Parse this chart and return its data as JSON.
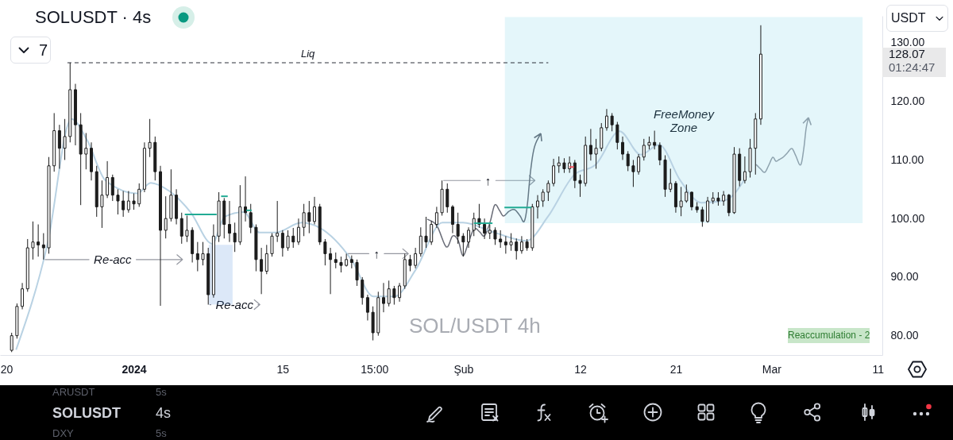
{
  "chart_data": {
    "type": "candlestick",
    "title": "SOLUSDT · 4s",
    "color": "#1c1c1c",
    "x": [
      "2023-12-20T12:00",
      "2023-12-21T00:00",
      "2023-12-21T12:00",
      "2023-12-22T00:00",
      "2023-12-22T12:00",
      "2023-12-23T00:00",
      "2023-12-23T12:00",
      "2023-12-24T00:00",
      "2023-12-24T12:00",
      "2023-12-25T00:00",
      "2023-12-25T12:00",
      "2023-12-26T00:00",
      "2023-12-26T12:00",
      "2023-12-27T00:00",
      "2023-12-27T12:00",
      "2023-12-28T00:00",
      "2023-12-28T12:00",
      "2023-12-29T00:00",
      "2023-12-29T12:00",
      "2023-12-30T00:00",
      "2023-12-30T12:00",
      "2023-12-31T00:00",
      "2023-12-31T12:00",
      "2024-01-01T00:00",
      "2024-01-01T12:00",
      "2024-01-02T00:00",
      "2024-01-02T12:00",
      "2024-01-03T00:00",
      "2024-01-03T12:00",
      "2024-01-04T00:00",
      "2024-01-04T12:00",
      "2024-01-05T00:00",
      "2024-01-05T12:00",
      "2024-01-06T00:00",
      "2024-01-06T12:00",
      "2024-01-07T00:00",
      "2024-01-07T12:00",
      "2024-01-08T00:00",
      "2024-01-08T12:00",
      "2024-01-09T00:00",
      "2024-01-09T12:00",
      "2024-01-10T00:00",
      "2024-01-10T12:00",
      "2024-01-11T00:00",
      "2024-01-11T12:00",
      "2024-01-12T00:00",
      "2024-01-12T12:00",
      "2024-01-13T00:00",
      "2024-01-13T12:00",
      "2024-01-14T00:00",
      "2024-01-14T12:00",
      "2024-01-15T00:00",
      "2024-01-15T12:00",
      "2024-01-16T00:00",
      "2024-01-16T12:00",
      "2024-01-17T00:00",
      "2024-01-17T12:00",
      "2024-01-18T00:00",
      "2024-01-18T12:00",
      "2024-01-19T00:00",
      "2024-01-19T12:00",
      "2024-01-20T00:00",
      "2024-01-20T12:00",
      "2024-01-21T00:00",
      "2024-01-21T12:00",
      "2024-01-22T00:00",
      "2024-01-22T12:00",
      "2024-01-23T00:00",
      "2024-01-23T12:00",
      "2024-01-24T00:00",
      "2024-01-24T12:00",
      "2024-01-25T00:00",
      "2024-01-25T12:00",
      "2024-01-26T00:00",
      "2024-01-26T12:00",
      "2024-01-27T00:00",
      "2024-01-27T12:00",
      "2024-01-28T00:00",
      "2024-01-28T12:00",
      "2024-01-29T00:00",
      "2024-01-29T12:00",
      "2024-01-30T00:00",
      "2024-01-30T12:00",
      "2024-01-31T00:00",
      "2024-01-31T12:00",
      "2024-02-01T00:00",
      "2024-02-01T12:00",
      "2024-02-02T00:00",
      "2024-02-02T12:00",
      "2024-02-03T00:00",
      "2024-02-03T12:00",
      "2024-02-04T00:00",
      "2024-02-04T12:00",
      "2024-02-05T00:00",
      "2024-02-05T12:00",
      "2024-02-06T00:00",
      "2024-02-06T12:00",
      "2024-02-07T00:00",
      "2024-02-07T12:00",
      "2024-02-08T00:00",
      "2024-02-08T12:00",
      "2024-02-09T00:00",
      "2024-02-09T12:00",
      "2024-02-10T00:00",
      "2024-02-10T12:00",
      "2024-02-11T00:00",
      "2024-02-11T12:00",
      "2024-02-12T00:00",
      "2024-02-12T12:00",
      "2024-02-13T00:00",
      "2024-02-13T12:00",
      "2024-02-14T00:00",
      "2024-02-14T12:00",
      "2024-02-15T00:00",
      "2024-02-15T12:00",
      "2024-02-16T00:00",
      "2024-02-16T12:00",
      "2024-02-17T00:00",
      "2024-02-17T12:00",
      "2024-02-18T00:00",
      "2024-02-18T12:00",
      "2024-02-19T00:00",
      "2024-02-19T12:00",
      "2024-02-20T00:00",
      "2024-02-20T12:00",
      "2024-02-21T00:00",
      "2024-02-21T12:00",
      "2024-02-22T00:00",
      "2024-02-22T12:00",
      "2024-02-23T00:00",
      "2024-02-23T12:00",
      "2024-02-24T00:00",
      "2024-02-24T12:00",
      "2024-02-25T00:00",
      "2024-02-25T12:00",
      "2024-02-26T00:00",
      "2024-02-26T12:00",
      "2024-02-27T00:00",
      "2024-02-27T12:00",
      "2024-02-28T00:00",
      "2024-02-28T12:00",
      "2024-02-29T00:00"
    ],
    "ohlc": [
      [
        77.5,
        80.5,
        77.2,
        80
      ],
      [
        80,
        85.5,
        79.5,
        85
      ],
      [
        85,
        89,
        84.5,
        88
      ],
      [
        88,
        96.5,
        87.5,
        95
      ],
      [
        95,
        99.5,
        93,
        96
      ],
      [
        96,
        99,
        93.5,
        95.5
      ],
      [
        95.5,
        97.5,
        93,
        95
      ],
      [
        95,
        110.5,
        94,
        109
      ],
      [
        109,
        118,
        108,
        115
      ],
      [
        115,
        116,
        108.5,
        112
      ],
      [
        112,
        117,
        110,
        114
      ],
      [
        114,
        126.6,
        113,
        122
      ],
      [
        122,
        123,
        112.5,
        116
      ],
      [
        116,
        118,
        102.3,
        111
      ],
      [
        111,
        114.6,
        108.4,
        112
      ],
      [
        112,
        113,
        106.5,
        108
      ],
      [
        108,
        109,
        100.3,
        102
      ],
      [
        102,
        106.5,
        98.4,
        104
      ],
      [
        104,
        109.8,
        103.5,
        107
      ],
      [
        107,
        107.5,
        103,
        104
      ],
      [
        104,
        105,
        100.7,
        103
      ],
      [
        103,
        104.7,
        100.3,
        101.5
      ],
      [
        101.5,
        104.7,
        101,
        103
      ],
      [
        103,
        104.3,
        101.5,
        102.5
      ],
      [
        102.5,
        106,
        102,
        105
      ],
      [
        105,
        113,
        104.5,
        112
      ],
      [
        112,
        117,
        110.5,
        113
      ],
      [
        113,
        114,
        106.5,
        108
      ],
      [
        108,
        109,
        85.1,
        98
      ],
      [
        98,
        103.8,
        96.6,
        100
      ],
      [
        100,
        108.4,
        99.5,
        104
      ],
      [
        104,
        105,
        99,
        100
      ],
      [
        100,
        101,
        95.7,
        97
      ],
      [
        97,
        100.5,
        96,
        98
      ],
      [
        98,
        98.5,
        92.5,
        94
      ],
      [
        94,
        96,
        91,
        93
      ],
      [
        93,
        96,
        92,
        94
      ],
      [
        94,
        95,
        85.3,
        87
      ],
      [
        87,
        99,
        86.5,
        97
      ],
      [
        97,
        104.5,
        96,
        103
      ],
      [
        103,
        103.5,
        96.6,
        99
      ],
      [
        99,
        103,
        96,
        97.5
      ],
      [
        97.5,
        99.3,
        94.3,
        96
      ],
      [
        96,
        105.7,
        95.5,
        102
      ],
      [
        102,
        107.2,
        99.5,
        101
      ],
      [
        101,
        102.5,
        97.5,
        98.5
      ],
      [
        98.5,
        99,
        91,
        93
      ],
      [
        93,
        95,
        87.1,
        91
      ],
      [
        91,
        95.5,
        90.5,
        94
      ],
      [
        94,
        97.5,
        93.5,
        97
      ],
      [
        97,
        103,
        96,
        97.5
      ],
      [
        97.5,
        98,
        93.5,
        95
      ],
      [
        95,
        98,
        94.5,
        97
      ],
      [
        97,
        98.4,
        95,
        96
      ],
      [
        96,
        100,
        95.5,
        98.5
      ],
      [
        98.5,
        102.5,
        97,
        101
      ],
      [
        101,
        103,
        97.5,
        99.5
      ],
      [
        99.5,
        103.7,
        99,
        102
      ],
      [
        102,
        102.5,
        95.5,
        96
      ],
      [
        96,
        96.5,
        92,
        94
      ],
      [
        94,
        95,
        87.1,
        93
      ],
      [
        93,
        94.2,
        91.5,
        92.5
      ],
      [
        92.5,
        93.5,
        90.8,
        92
      ],
      [
        92,
        94,
        91.8,
        93
      ],
      [
        93,
        93.7,
        91.5,
        92.5
      ],
      [
        92.5,
        93,
        88.5,
        89.5
      ],
      [
        89.5,
        90,
        85.3,
        86.5
      ],
      [
        86.5,
        87,
        82.6,
        84
      ],
      [
        84,
        85,
        79.2,
        80.5
      ],
      [
        80.5,
        87.5,
        80,
        86.5
      ],
      [
        86.5,
        89,
        84,
        85.5
      ],
      [
        85.5,
        89.4,
        85,
        88
      ],
      [
        88,
        88.5,
        85.3,
        86.5
      ],
      [
        86.5,
        89,
        85.8,
        88.5
      ],
      [
        88.5,
        94,
        88,
        93
      ],
      [
        93,
        93.8,
        91,
        92
      ],
      [
        92,
        95,
        91.5,
        94
      ],
      [
        94,
        98.5,
        93.5,
        97
      ],
      [
        97,
        100.3,
        95,
        96
      ],
      [
        96,
        99.6,
        95.5,
        99
      ],
      [
        99,
        102,
        98.4,
        101
      ],
      [
        101,
        106.5,
        100.5,
        105
      ],
      [
        105,
        106,
        101,
        102
      ],
      [
        102,
        102.3,
        97.5,
        99
      ],
      [
        99,
        101,
        95.7,
        97
      ],
      [
        97,
        97.5,
        93.5,
        96
      ],
      [
        96,
        98.5,
        95,
        98
      ],
      [
        98,
        101,
        97,
        100
      ],
      [
        100,
        102.5,
        98.4,
        99
      ],
      [
        99,
        100,
        96.5,
        97.5
      ],
      [
        97.5,
        99,
        96.5,
        98
      ],
      [
        98,
        98.5,
        95.5,
        96.5
      ],
      [
        96.5,
        98,
        95,
        96
      ],
      [
        96,
        97,
        94,
        95.5
      ],
      [
        95.5,
        97.5,
        94.5,
        96
      ],
      [
        96,
        96.6,
        93,
        94.5
      ],
      [
        94.5,
        97,
        94,
        96
      ],
      [
        96,
        96.5,
        94.5,
        95
      ],
      [
        95,
        102.5,
        94.5,
        102
      ],
      [
        102,
        104,
        100,
        103
      ],
      [
        103,
        105,
        102,
        104.5
      ],
      [
        104.5,
        106.5,
        103,
        106
      ],
      [
        106,
        110.2,
        105.5,
        109
      ],
      [
        109,
        110.6,
        107.8,
        109.5
      ],
      [
        109.5,
        110.3,
        107.8,
        108.5
      ],
      [
        108.5,
        110.6,
        107.8,
        109.5
      ],
      [
        109.5,
        110,
        105.2,
        106.5
      ],
      [
        106.5,
        107.5,
        103.7,
        106
      ],
      [
        106,
        114,
        105.5,
        112.5
      ],
      [
        112.5,
        115.3,
        109.9,
        111
      ],
      [
        111,
        113.6,
        108.5,
        112
      ],
      [
        112,
        116.3,
        111.5,
        115.5
      ],
      [
        115.5,
        118.7,
        115,
        117.5
      ],
      [
        117.5,
        118,
        114.9,
        116
      ],
      [
        116,
        116.5,
        111.8,
        113
      ],
      [
        113,
        114,
        110,
        111
      ],
      [
        111,
        111.5,
        108.1,
        109
      ],
      [
        109,
        110,
        105.4,
        108
      ],
      [
        108,
        111,
        107.5,
        110.5
      ],
      [
        110.5,
        113.6,
        109.9,
        112.5
      ],
      [
        112.5,
        114,
        111.8,
        113
      ],
      [
        113,
        115,
        111.8,
        112.5
      ],
      [
        112.5,
        113,
        109.1,
        110
      ],
      [
        110,
        110.8,
        103.7,
        105
      ],
      [
        105,
        108.5,
        104.5,
        106
      ],
      [
        106,
        106.4,
        101,
        102
      ],
      [
        102,
        105.4,
        100.4,
        103
      ],
      [
        103,
        105.8,
        102.7,
        104.5
      ],
      [
        104.5,
        104.6,
        101.4,
        102
      ],
      [
        102,
        102.8,
        101,
        101.5
      ],
      [
        101.5,
        102,
        98.6,
        99.5
      ],
      [
        99.5,
        103.7,
        99.3,
        103
      ],
      [
        103,
        104.5,
        102.5,
        103.5
      ],
      [
        103.5,
        104.5,
        102.2,
        103
      ],
      [
        103,
        104.7,
        102.2,
        104
      ],
      [
        104,
        104.2,
        100.4,
        101
      ],
      [
        101,
        112.2,
        100.8,
        111
      ],
      [
        111,
        112,
        105.5,
        106.5
      ],
      [
        106.5,
        110.6,
        106,
        108
      ],
      [
        108,
        113.6,
        107,
        112
      ],
      [
        112,
        118,
        107.5,
        117
      ],
      [
        117,
        133,
        116,
        128.07
      ]
    ],
    "series": [
      {
        "type": "line",
        "x": [
          "2024-02-04T22:00",
          "2024-03-09T14:00"
        ],
        "values": [
          null,
          null
        ],
        "lower": [
          99.2,
          99.2
        ],
        "upper": [
          134.4,
          134.4
        ],
        "color": "#e4f6fa"
      },
      {
        "type": "line",
        "x": [
          "2024-01-08T01:00",
          "2024-01-10T07:00"
        ],
        "values": [
          null,
          null
        ],
        "lower": [
          85.3,
          85.3
        ],
        "upper": [
          95.5,
          95.5
        ],
        "color": "#dce8f8"
      },
      {
        "type": "line",
        "x": [
          "2023-12-20T22:00",
          "2023-12-23T21:00",
          "2023-12-26T03:00",
          "2023-12-27T15:00",
          "2023-12-29T08:00",
          "2024-01-01T08:00",
          "2024-01-02T14:00",
          "2024-01-04T08:00",
          "2024-01-06T08:00",
          "2024-01-08T09:00",
          "2024-01-09T13:00",
          "2024-01-11T08:00",
          "2024-01-12T20:00",
          "2024-01-14T08:00",
          "2024-01-16T19:00",
          "2024-01-18T12:00",
          "2024-01-21T12:00",
          "2024-01-23T13:00",
          "2024-01-25T13:00",
          "2024-01-27T12:00",
          "2024-01-30T01:00",
          "2024-01-31T23:00",
          "2024-02-03T23:00",
          "2024-02-06T23:00",
          "2024-02-08T23:00",
          "2024-02-11T11:00",
          "2024-02-13T11:00",
          "2024-02-15T17:00",
          "2024-02-17T17:00",
          "2024-02-19T10:00",
          "2024-02-21T11:00",
          "2024-02-23T10:00",
          "2024-02-25T15:00",
          "2024-02-27T16:00"
        ],
        "values": [
          77.6,
          95.7,
          117.0,
          113.3,
          106.5,
          104.3,
          106.1,
          104.7,
          101.1,
          95.7,
          100.3,
          101.1,
          97.6,
          97.6,
          99.3,
          98.4,
          92.9,
          86.7,
          86.7,
          91.2,
          99.3,
          99.3,
          97.6,
          96.2,
          100.3,
          107.5,
          109.2,
          114.9,
          110.9,
          112.6,
          106.4,
          102.7,
          103.1,
          107.2
        ],
        "color": "#b9d2e3"
      },
      {
        "type": "line",
        "name": "Liq",
        "x": [
          "2023-12-25T18:00",
          "2024-02-09T00:00"
        ],
        "values": [
          126.6,
          126.6
        ],
        "color": "#2a2e39",
        "line_style": "dashed"
      },
      {
        "type": "line",
        "x": [
          "2024-01-05T19:00",
          "2024-01-08T19:00"
        ],
        "values": [
          100.7,
          100.7
        ],
        "color": "#22ab94"
      },
      {
        "type": "line",
        "x": [
          "2024-01-09T05:00",
          "2024-01-09T20:00"
        ],
        "values": [
          103.8,
          103.8
        ],
        "color": "#22ab94"
      },
      {
        "type": "line",
        "x": [
          "2024-01-11T14:00",
          "2024-01-12T02:00"
        ],
        "values": [
          101.4,
          101.4
        ],
        "color": "#22ab94"
      },
      {
        "type": "line",
        "x": [
          "2024-02-02T00:00",
          "2024-02-03T18:00"
        ],
        "values": [
          99.2,
          99.2
        ],
        "color": "#22ab94"
      },
      {
        "type": "line",
        "x": [
          "2024-02-04T21:00",
          "2024-02-07T10:00"
        ],
        "values": [
          101.9,
          101.9
        ],
        "color": "#22ab94"
      },
      {
        "type": "line",
        "x": [
          "2024-02-11T00:00",
          "2024-02-11T10:00"
        ],
        "values": [
          108.8,
          108.8
        ],
        "color": "#f7525f"
      }
    ],
    "xlim": [
      "2023-12-19T09:40",
      "2024-03-11T10:30"
    ],
    "xticks": [
      {
        "value": "2023-12-20T00:00",
        "label": "20"
      },
      {
        "value": "2024-01-01T00:00",
        "label": "2024"
      },
      {
        "value": "2024-01-15T00:00",
        "label": "15"
      },
      {
        "value": "2024-01-23T15:00",
        "label": "15:00"
      },
      {
        "value": "2024-02-01T00:00",
        "label": "Şub"
      },
      {
        "value": "2024-02-12T00:00",
        "label": "12"
      },
      {
        "value": "2024-02-21T00:00",
        "label": "21"
      },
      {
        "value": "2024-03-01T00:00",
        "label": "Mar"
      },
      {
        "value": "2024-03-11T00:00",
        "label": "11"
      }
    ],
    "ylim": [
      76.7,
      134.6
    ],
    "yticks": [
      {
        "value": 80,
        "label": "80.00"
      },
      {
        "value": 90,
        "label": "90.00"
      },
      {
        "value": 100,
        "label": "100.00"
      },
      {
        "value": 110,
        "label": "110.00"
      },
      {
        "value": 120,
        "label": "120.00"
      },
      {
        "value": 130,
        "label": "130.00"
      }
    ],
    "annotations": [
      {
        "text": "Re-acc",
        "x": "2023-12-23T12:00",
        "y": 93
      },
      {
        "text": "Re-acc",
        "x": "2024-01-08T00:00",
        "y": 85.3
      },
      {
        "text": "↑",
        "x": "2024-01-21T00:00",
        "y": 94
      },
      {
        "text": "↑",
        "x": "2024-01-30T00:00",
        "y": 106.5
      },
      "FreeMoney Zone",
      "128.07",
      "01:24:47",
      "7",
      "USDT",
      "SOL/USDT 4h",
      "Reaccumulation - 2",
      "ARUSDT",
      "5s",
      "SOLUSDT",
      "4s",
      "DXY",
      "5s"
    ]
  }
}
